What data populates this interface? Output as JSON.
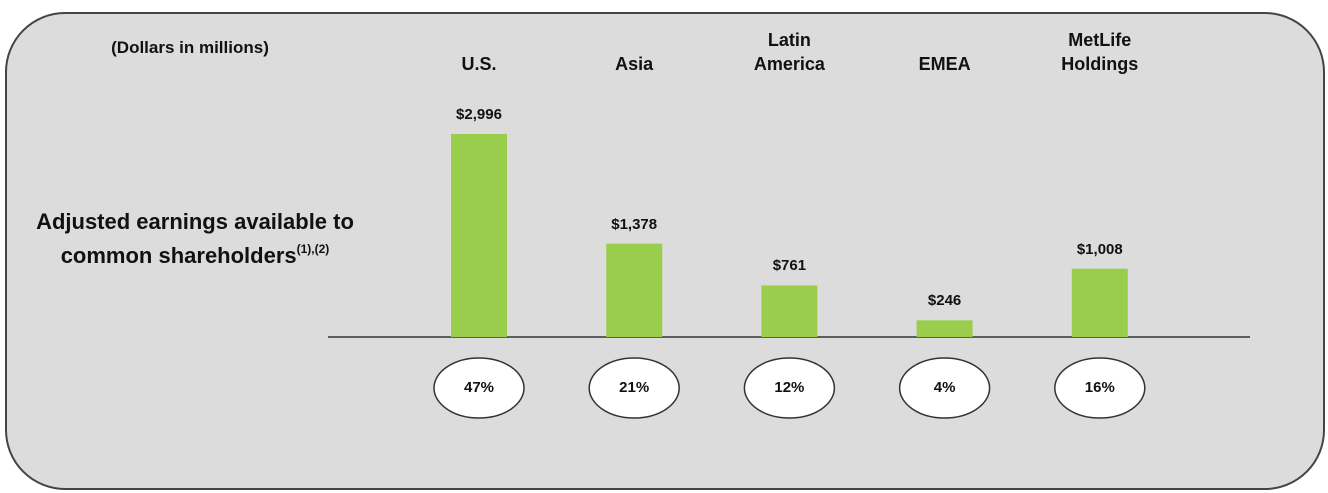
{
  "chart_data": {
    "type": "bar",
    "subtitle": "(Dollars in millions)",
    "ylabel": "Adjusted earnings available to common shareholders",
    "ylabel_note": "(1),(2)",
    "categories": [
      "U.S.",
      "Asia",
      "Latin America",
      "EMEA",
      "MetLife Holdings"
    ],
    "values": [
      2996,
      1378,
      761,
      246,
      1008
    ],
    "value_labels": [
      "$2,996",
      "$1,378",
      "$761",
      "$246",
      "$1,008"
    ],
    "shares": [
      47,
      21,
      12,
      4,
      16
    ],
    "share_labels": [
      "47%",
      "21%",
      "12%",
      "4%",
      "16%"
    ],
    "color": "#9acd4c"
  }
}
